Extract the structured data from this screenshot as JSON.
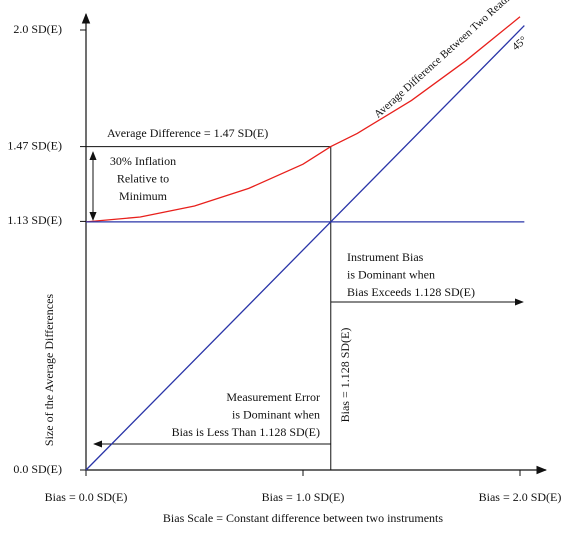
{
  "chart_data": {
    "type": "line",
    "xlim": [
      0,
      2.1
    ],
    "ylim": [
      0,
      2.06
    ],
    "xticks": [
      {
        "value": 0,
        "label": "Bias = 0.0 SD(E)"
      },
      {
        "value": 1,
        "label": "Bias = 1.0 SD(E)"
      },
      {
        "value": 2,
        "label": "Bias = 2.0 SD(E)"
      }
    ],
    "yticks": [
      {
        "value": 0,
        "label": "0.0 SD(E)"
      },
      {
        "value": 1.13,
        "label": "1.13 SD(E)"
      },
      {
        "value": 1.47,
        "label": "1.47 SD(E)"
      },
      {
        "value": 2.0,
        "label": "2.0 SD(E)"
      }
    ],
    "x_label": "Bias Scale = Constant difference between two instruments",
    "y_label": "Size of the Average Differences",
    "series": [
      {
        "name": "Average Difference Between Two Readings",
        "color": "#e8201c",
        "x": [
          0,
          0.25,
          0.5,
          0.75,
          1.0,
          1.128,
          1.25,
          1.5,
          1.75,
          2.0
        ],
        "values": [
          1.128,
          1.15,
          1.2,
          1.28,
          1.39,
          1.47,
          1.53,
          1.68,
          1.86,
          2.06
        ]
      },
      {
        "name": "45°",
        "color": "#2a35a8",
        "x": [
          0,
          2.02
        ],
        "values": [
          0,
          2.02
        ]
      },
      {
        "color": "#2a35a8",
        "x": [
          0,
          2.02
        ],
        "values": [
          1.128,
          1.128
        ]
      }
    ],
    "annotations": [
      {
        "lines": [
          "Average Difference = 1.47 SD(E)"
        ]
      },
      {
        "lines": [
          "30% Inflation",
          "Relative to",
          "Minimum"
        ]
      },
      {
        "lines": [
          "Instrument Bias",
          "is Dominant when",
          "Bias Exceeds 1.128 SD(E)"
        ]
      },
      {
        "lines": [
          "Bias = 1.128 SD(E)"
        ]
      },
      {
        "lines": [
          "Measurement Error",
          "is Dominant when",
          "Bias is Less Than 1.128 SD(E)"
        ]
      }
    ]
  }
}
